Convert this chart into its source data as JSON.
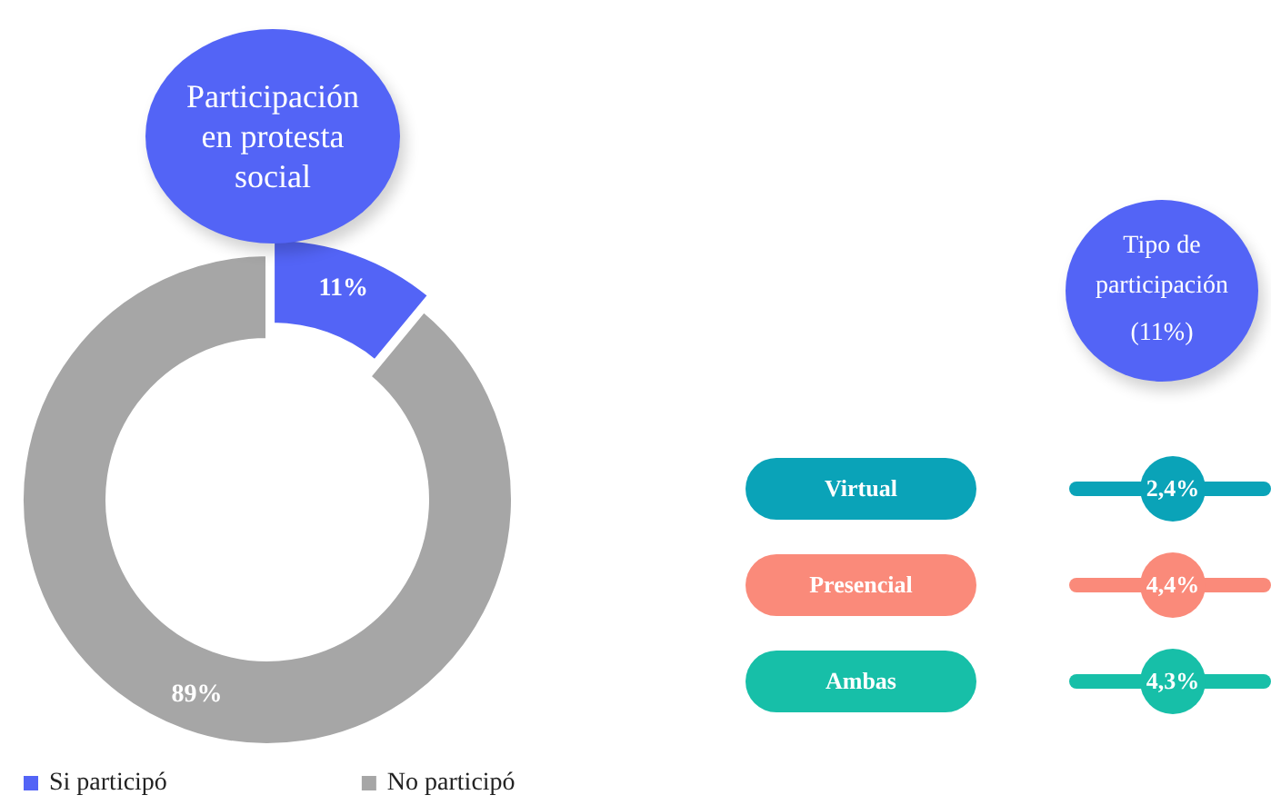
{
  "chart_data": [
    {
      "type": "donut",
      "title": "Participación en protesta social",
      "categories": [
        "Si participó",
        "No participó"
      ],
      "values": [
        11,
        89
      ],
      "value_labels": [
        "11%",
        "89%"
      ],
      "colors": [
        "#5364f6",
        "#a6a6a6"
      ],
      "legend": "bottom"
    },
    {
      "type": "other",
      "title": "Tipo de participación",
      "subtitle": "(11%)",
      "categories": [
        "Virtual",
        "Presencial",
        "Ambas"
      ],
      "value_labels": [
        "2,4%",
        "4,4%",
        "4,3%"
      ],
      "colors": [
        "#0aa3b8",
        "#fa8a7a",
        "#17bfa8"
      ]
    }
  ]
}
